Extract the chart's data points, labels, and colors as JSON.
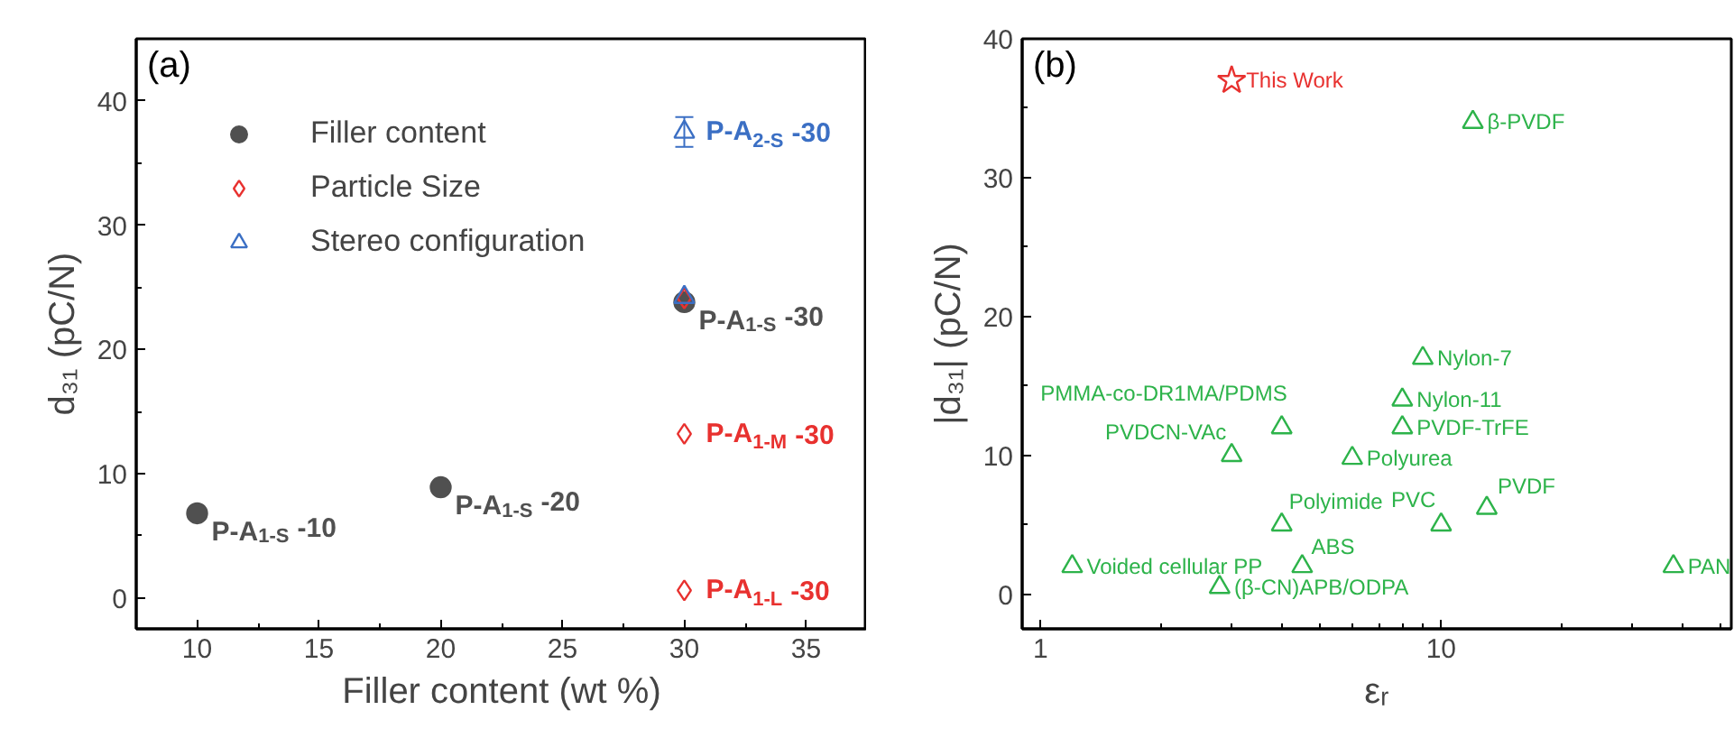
{
  "chart_data": [
    {
      "type": "scatter",
      "xlabel": "Filler content (wt %)",
      "ylabel": "d₃₁ (pC/N)",
      "xlim": [
        7.5,
        37.5
      ],
      "ylim": [
        -2.5,
        45
      ],
      "xticks": [
        10,
        15,
        20,
        25,
        30,
        35
      ],
      "yticks": [
        0,
        10,
        20,
        30,
        40
      ],
      "legend": "top left",
      "series": [
        {
          "name": "Filler content",
          "color": "#505050",
          "marker": "circle",
          "x": [
            10,
            20,
            30
          ],
          "values": [
            6.8,
            8.9,
            23.8
          ]
        },
        {
          "name": "Particle Size",
          "color": "#e8312f",
          "marker": "diamond",
          "x": [
            30,
            30,
            30
          ],
          "values": [
            24.1,
            13.2,
            0.6
          ]
        },
        {
          "name": "Stereo configuration",
          "color": "#3b6fc4",
          "marker": "triangle",
          "x": [
            30,
            30
          ],
          "values": [
            24.2,
            37.5
          ],
          "errors": [
            null,
            1.2
          ]
        }
      ],
      "annotations": [
        "(a)",
        {
          "text": "P-A$_{1-S}$ -10",
          "x": 10,
          "y": 6.8
        },
        {
          "text": "P-A$_{1-S}$ -20",
          "x": 20,
          "y": 8.9
        },
        {
          "text": "P-A$_{1-S}$ -30",
          "x": 30,
          "y": 23.8
        },
        {
          "text": "P-A$_{2-S}$ -30",
          "x": 30,
          "y": 37.5
        },
        {
          "text": "P-A$_{1-M}$ -30",
          "x": 30,
          "y": 13.2
        },
        {
          "text": "P-A$_{1-L}$ -30",
          "x": 30,
          "y": 0.6
        }
      ]
    },
    {
      "type": "scatter",
      "xlabel": "εᵣ",
      "ylabel": "|d₃₁| (pC/N)",
      "log": "x",
      "xlim": [
        0.9,
        53
      ],
      "ylim": [
        -2.5,
        40
      ],
      "xticks": [
        1,
        10
      ],
      "yticks": [
        0,
        10,
        20,
        30,
        40
      ],
      "series": [
        {
          "color": "#e8312f",
          "marker": "star",
          "x": [
            3
          ],
          "values": [
            37
          ]
        },
        {
          "color": "#2db34a",
          "marker": "triangle",
          "x": [
            12,
            9,
            8,
            8,
            4,
            3,
            6,
            4,
            10,
            13,
            1.2,
            4.5,
            2.8,
            38
          ],
          "values": [
            34,
            17,
            14,
            12,
            12,
            10,
            9.8,
            5,
            5,
            6.2,
            2,
            2,
            0.5,
            2
          ]
        }
      ],
      "annotations": [
        "(b)",
        {
          "text": "This Work",
          "x": 3,
          "y": 37
        },
        {
          "text": "β-PVDF",
          "x": 12,
          "y": 34
        },
        {
          "text": "Nylon-7",
          "x": 9,
          "y": 17
        },
        {
          "text": "Nylon-11",
          "x": 8,
          "y": 14
        },
        {
          "text": "PVDF-TrFE",
          "x": 8,
          "y": 12
        },
        {
          "text": "PMMA-co-DR1MA/PDMS",
          "x": 4,
          "y": 12
        },
        {
          "text": "PVDCN-VAc",
          "x": 3,
          "y": 10
        },
        {
          "text": "Polyurea",
          "x": 6,
          "y": 9.8
        },
        {
          "text": "Polyimide",
          "x": 4,
          "y": 5
        },
        {
          "text": "PVC",
          "x": 10,
          "y": 5
        },
        {
          "text": "PVDF",
          "x": 13,
          "y": 6.2
        },
        {
          "text": "Voided cellular PP",
          "x": 1.2,
          "y": 2
        },
        {
          "text": "ABS",
          "x": 4.5,
          "y": 2
        },
        {
          "text": "(β-CN)APB/ODPA",
          "x": 2.8,
          "y": 0.5
        },
        {
          "text": "PAN",
          "x": 38,
          "y": 2
        }
      ]
    }
  ]
}
